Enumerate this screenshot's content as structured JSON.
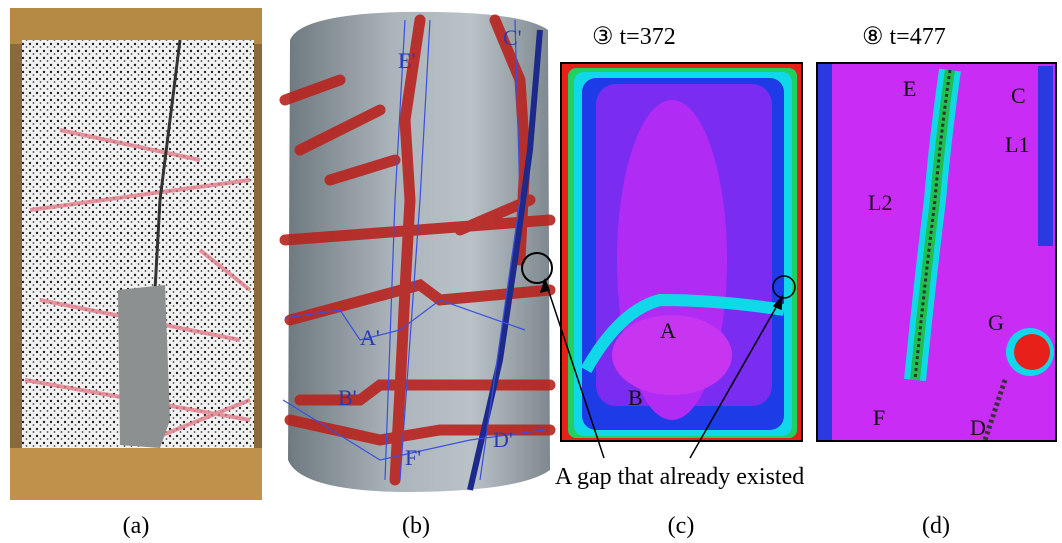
{
  "panels": [
    {
      "label": "(a)"
    },
    {
      "label": "(b)",
      "annotations": [
        "E'",
        "C'",
        "A'",
        "B'",
        "F'",
        "D'"
      ]
    },
    {
      "label": "(c)",
      "title": "③ t=372",
      "annotations": [
        "A",
        "B"
      ]
    },
    {
      "label": "(d)",
      "title": "⑧ t=477",
      "annotations": [
        "E",
        "C",
        "L1",
        "L2",
        "G",
        "F",
        "D"
      ]
    }
  ],
  "callout": "A gap that already existed"
}
